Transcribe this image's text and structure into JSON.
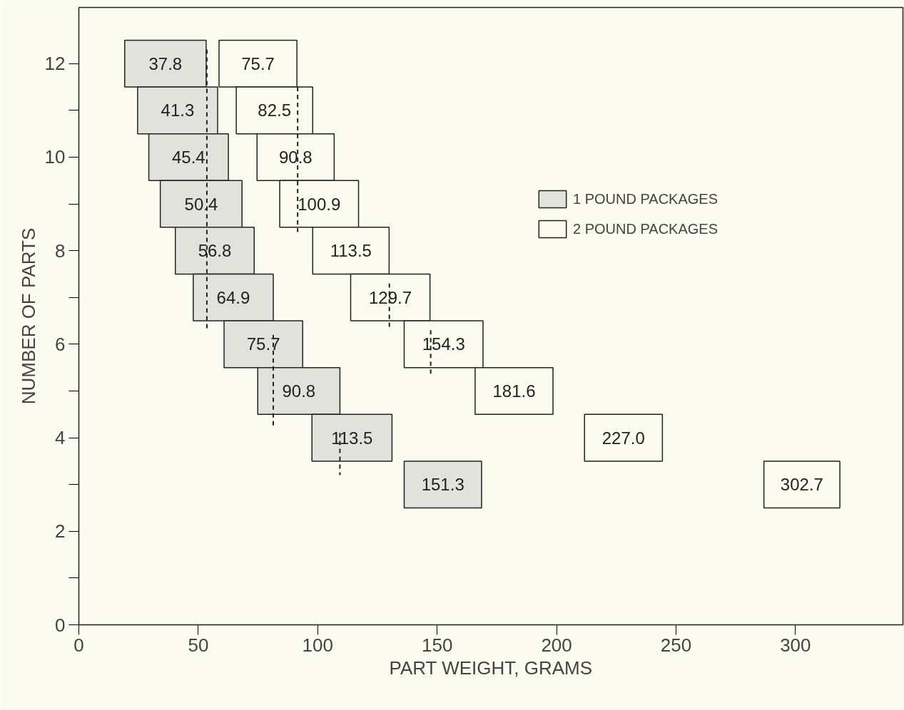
{
  "chart_data": {
    "type": "bar",
    "orientation": "horizontal",
    "xlabel": "PART WEIGHT, GRAMS",
    "ylabel": "NUMBER OF PARTS",
    "xlim": [
      0,
      345
    ],
    "ylim": [
      0,
      13.2
    ],
    "xticks": [
      0,
      50,
      100,
      150,
      200,
      250,
      300
    ],
    "yticks": [
      0,
      {
        "value": 1,
        "label": null
      },
      2,
      {
        "value": 3,
        "label": null
      },
      4,
      {
        "value": 5,
        "label": null
      },
      6,
      {
        "value": 7,
        "label": null
      },
      8,
      {
        "value": 9,
        "label": null
      },
      10,
      {
        "value": 11,
        "label": null
      },
      12
    ],
    "grid": false,
    "legend": "right",
    "series": [
      {
        "name": "1 POUND PACKAGES",
        "color": "#e2e2dc",
        "x": [
          12,
          11,
          10,
          9,
          8,
          7,
          6,
          5,
          4,
          3
        ],
        "base": [
          19.2,
          24.6,
          29.3,
          34.1,
          40.4,
          47.9,
          60.8,
          74.9,
          97.6,
          136.2
        ],
        "values": [
          34.1,
          33.5,
          33.3,
          34.2,
          33.0,
          33.5,
          32.9,
          34.4,
          33.5,
          32.4
        ]
      },
      {
        "name": "2 POUND PACKAGES",
        "color": "#fbfbef",
        "x": [
          12,
          11,
          10,
          9,
          8,
          7,
          6,
          5,
          4,
          3
        ],
        "base": [
          58.7,
          65.9,
          74.6,
          84.1,
          97.9,
          113.8,
          136.2,
          165.9,
          211.7,
          286.8
        ],
        "values": [
          32.6,
          32.0,
          32.3,
          33.0,
          32.0,
          33.2,
          33.0,
          32.6,
          32.6,
          31.8
        ]
      },
      {
        "type": "line",
        "line_style": "dashed",
        "color": "#222222",
        "x": [
          12.3,
          6.3,
          null,
          6.2,
          4.2,
          null,
          4.1,
          3.2
        ],
        "values": [
          53.6,
          53.6,
          null,
          81.4,
          81.4,
          null,
          109.3,
          109.3
        ]
      },
      {
        "type": "line",
        "line_style": "dashed",
        "color": "#222222",
        "x": [
          11.5,
          8.4,
          null,
          7.3,
          6.3,
          null,
          6.3,
          5.3
        ],
        "values": [
          91.6,
          91.6,
          null,
          130.0,
          130.0,
          null,
          147.3,
          147.3
        ]
      }
    ],
    "annotations": [
      "37.8",
      "41.3",
      "45.4",
      "50.4",
      "56.8",
      "64.9",
      "75.7",
      "90.8",
      "113.5",
      "151.3",
      "75.7",
      "82.5",
      "90.8",
      "100.9",
      "113.5",
      "129.7",
      "154.3",
      "181.6",
      "227.0",
      "302.7"
    ]
  }
}
